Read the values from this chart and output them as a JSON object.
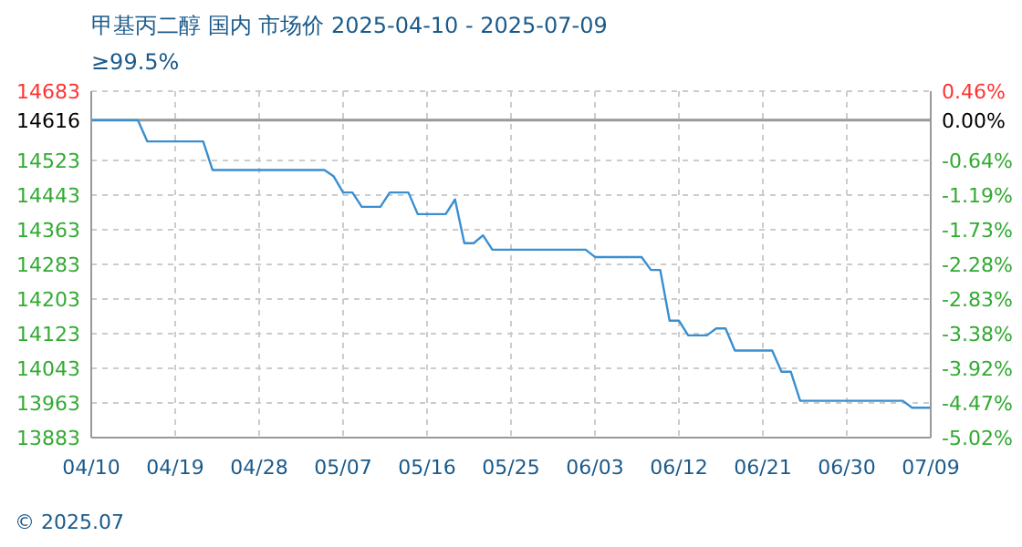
{
  "chart_data": {
    "type": "line",
    "title": "甲基丙二醇 国内 市场价 2025-04-10 - 2025-07-09",
    "subtitle": "≥99.5%",
    "x": [
      "2025-04-10",
      "2025-04-15",
      "2025-04-16",
      "2025-04-22",
      "2025-04-23",
      "2025-05-05",
      "2025-05-06",
      "2025-05-07",
      "2025-05-08",
      "2025-05-09",
      "2025-05-11",
      "2025-05-12",
      "2025-05-14",
      "2025-05-15",
      "2025-05-18",
      "2025-05-19",
      "2025-05-20",
      "2025-05-21",
      "2025-05-22",
      "2025-05-23",
      "2025-06-02",
      "2025-06-03",
      "2025-06-08",
      "2025-06-09",
      "2025-06-10",
      "2025-06-11",
      "2025-06-12",
      "2025-06-13",
      "2025-06-15",
      "2025-06-16",
      "2025-06-17",
      "2025-06-18",
      "2025-06-22",
      "2025-06-23",
      "2025-06-24",
      "2025-06-25",
      "2025-07-06",
      "2025-07-07",
      "2025-07-09"
    ],
    "series": [
      {
        "color": "#3a8fd0",
        "values": [
          14616,
          14616,
          14567,
          14567,
          14501,
          14501,
          14486,
          14449,
          14449,
          14416,
          14416,
          14449,
          14449,
          14399,
          14399,
          14433,
          14332,
          14332,
          14350,
          14317,
          14317,
          14300,
          14300,
          14270,
          14270,
          14153,
          14153,
          14119,
          14119,
          14135,
          14135,
          14084,
          14084,
          14035,
          14035,
          13968,
          13968,
          13952,
          13952
        ]
      }
    ],
    "xlim": [
      "2025-04-10",
      "2025-07-09"
    ],
    "xticks": [
      {
        "value": "2025-04-10",
        "label": "04/10"
      },
      {
        "value": "2025-04-19",
        "label": "04/19"
      },
      {
        "value": "2025-04-28",
        "label": "04/28"
      },
      {
        "value": "2025-05-07",
        "label": "05/07"
      },
      {
        "value": "2025-05-16",
        "label": "05/16"
      },
      {
        "value": "2025-05-25",
        "label": "05/25"
      },
      {
        "value": "2025-06-03",
        "label": "06/03"
      },
      {
        "value": "2025-06-12",
        "label": "06/12"
      },
      {
        "value": "2025-06-21",
        "label": "06/21"
      },
      {
        "value": "2025-06-30",
        "label": "06/30"
      },
      {
        "value": "2025-07-09",
        "label": "07/09"
      }
    ],
    "ylim": [
      13883,
      14683
    ],
    "yticks": [
      13883,
      13963,
      14043,
      14123,
      14203,
      14283,
      14363,
      14443,
      14523,
      14616,
      14683
    ],
    "y2lim": [
      -5.02,
      0.46
    ],
    "y2ticks": [
      {
        "value": -5.02,
        "label": "-5.02%"
      },
      {
        "value": -4.47,
        "label": "-4.47%"
      },
      {
        "value": -3.92,
        "label": "-3.92%"
      },
      {
        "value": -3.38,
        "label": "-3.38%"
      },
      {
        "value": -2.83,
        "label": "-2.83%"
      },
      {
        "value": -2.28,
        "label": "-2.28%"
      },
      {
        "value": -1.73,
        "label": "-1.73%"
      },
      {
        "value": -1.19,
        "label": "-1.19%"
      },
      {
        "value": -0.64,
        "label": "-0.64%"
      },
      {
        "value": 0,
        "label": "0.00%"
      },
      {
        "value": 0.46,
        "label": "0.46%"
      }
    ],
    "ref_lines": [
      {
        "axis": "y",
        "value": 14616,
        "color": "#999999",
        "line_style": "solid"
      }
    ],
    "grid": true,
    "marker": "none",
    "line_style": "solid",
    "annotations": [
      "© 2025.07"
    ]
  }
}
